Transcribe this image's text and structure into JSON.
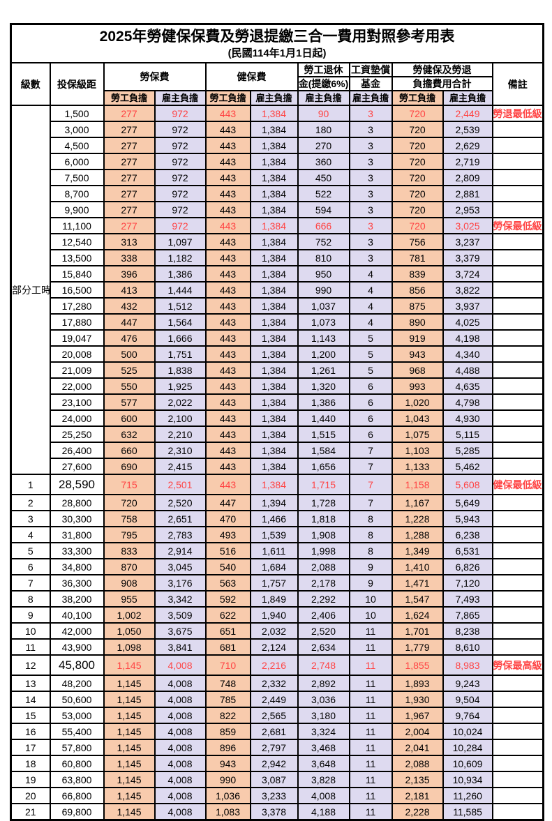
{
  "page": {
    "title": "2025年勞健保保費及勞退提繳三合一費用對照參考用表",
    "subtitle": "(民國114年1月1日起)"
  },
  "colors": {
    "employee_column_bg": "#F8CBAD",
    "employer_column_bg": "#DEDAF0",
    "highlight_text": "#FF4343",
    "border": "#000000"
  },
  "header": {
    "level": "級數",
    "bracket": "投保級距",
    "labor_group": "勞保費",
    "health_group": "健保費",
    "pension_line1": "勞工退休",
    "pension_line2": "金(提繳6%)",
    "wage_line1": "工資墊償",
    "wage_line2": "基金",
    "total_line1": "勞健保及勞退",
    "total_line2": "負擔費用合計",
    "note": "備註",
    "employee": "勞工負擔",
    "employer": "雇主負擔"
  },
  "part_time_label": "部分工時",
  "part_time_span": 23,
  "rows": [
    {
      "level": "",
      "bracket": "1,500",
      "values": [
        "277",
        "972",
        "443",
        "1,384",
        "90",
        "3",
        "720",
        "2,449"
      ],
      "note": "勞退最低級距",
      "hl": true,
      "big": false
    },
    {
      "level": "",
      "bracket": "3,000",
      "values": [
        "277",
        "972",
        "443",
        "1,384",
        "180",
        "3",
        "720",
        "2,539"
      ],
      "note": "",
      "hl": false,
      "big": false
    },
    {
      "level": "",
      "bracket": "4,500",
      "values": [
        "277",
        "972",
        "443",
        "1,384",
        "270",
        "3",
        "720",
        "2,629"
      ],
      "note": "",
      "hl": false,
      "big": false
    },
    {
      "level": "",
      "bracket": "6,000",
      "values": [
        "277",
        "972",
        "443",
        "1,384",
        "360",
        "3",
        "720",
        "2,719"
      ],
      "note": "",
      "hl": false,
      "big": false
    },
    {
      "level": "",
      "bracket": "7,500",
      "values": [
        "277",
        "972",
        "443",
        "1,384",
        "450",
        "3",
        "720",
        "2,809"
      ],
      "note": "",
      "hl": false,
      "big": false
    },
    {
      "level": "",
      "bracket": "8,700",
      "values": [
        "277",
        "972",
        "443",
        "1,384",
        "522",
        "3",
        "720",
        "2,881"
      ],
      "note": "",
      "hl": false,
      "big": false
    },
    {
      "level": "",
      "bracket": "9,900",
      "values": [
        "277",
        "972",
        "443",
        "1,384",
        "594",
        "3",
        "720",
        "2,953"
      ],
      "note": "",
      "hl": false,
      "big": false
    },
    {
      "level": "",
      "bracket": "11,100",
      "values": [
        "277",
        "972",
        "443",
        "1,384",
        "666",
        "3",
        "720",
        "3,025"
      ],
      "note": "勞保最低級距",
      "hl": true,
      "big": false
    },
    {
      "level": "",
      "bracket": "12,540",
      "values": [
        "313",
        "1,097",
        "443",
        "1,384",
        "752",
        "3",
        "756",
        "3,237"
      ],
      "note": "",
      "hl": false,
      "big": false
    },
    {
      "level": "",
      "bracket": "13,500",
      "values": [
        "338",
        "1,182",
        "443",
        "1,384",
        "810",
        "3",
        "781",
        "3,379"
      ],
      "note": "",
      "hl": false,
      "big": false
    },
    {
      "level": "",
      "bracket": "15,840",
      "values": [
        "396",
        "1,386",
        "443",
        "1,384",
        "950",
        "4",
        "839",
        "3,724"
      ],
      "note": "",
      "hl": false,
      "big": false
    },
    {
      "level": "",
      "bracket": "16,500",
      "values": [
        "413",
        "1,444",
        "443",
        "1,384",
        "990",
        "4",
        "856",
        "3,822"
      ],
      "note": "",
      "hl": false,
      "big": false
    },
    {
      "level": "",
      "bracket": "17,280",
      "values": [
        "432",
        "1,512",
        "443",
        "1,384",
        "1,037",
        "4",
        "875",
        "3,937"
      ],
      "note": "",
      "hl": false,
      "big": false
    },
    {
      "level": "",
      "bracket": "17,880",
      "values": [
        "447",
        "1,564",
        "443",
        "1,384",
        "1,073",
        "4",
        "890",
        "4,025"
      ],
      "note": "",
      "hl": false,
      "big": false
    },
    {
      "level": "",
      "bracket": "19,047",
      "values": [
        "476",
        "1,666",
        "443",
        "1,384",
        "1,143",
        "5",
        "919",
        "4,198"
      ],
      "note": "",
      "hl": false,
      "big": false
    },
    {
      "level": "",
      "bracket": "20,008",
      "values": [
        "500",
        "1,751",
        "443",
        "1,384",
        "1,200",
        "5",
        "943",
        "4,340"
      ],
      "note": "",
      "hl": false,
      "big": false
    },
    {
      "level": "",
      "bracket": "21,009",
      "values": [
        "525",
        "1,838",
        "443",
        "1,384",
        "1,261",
        "5",
        "968",
        "4,488"
      ],
      "note": "",
      "hl": false,
      "big": false
    },
    {
      "level": "",
      "bracket": "22,000",
      "values": [
        "550",
        "1,925",
        "443",
        "1,384",
        "1,320",
        "6",
        "993",
        "4,635"
      ],
      "note": "",
      "hl": false,
      "big": false
    },
    {
      "level": "",
      "bracket": "23,100",
      "values": [
        "577",
        "2,022",
        "443",
        "1,384",
        "1,386",
        "6",
        "1,020",
        "4,798"
      ],
      "note": "",
      "hl": false,
      "big": false
    },
    {
      "level": "",
      "bracket": "24,000",
      "values": [
        "600",
        "2,100",
        "443",
        "1,384",
        "1,440",
        "6",
        "1,043",
        "4,930"
      ],
      "note": "",
      "hl": false,
      "big": false
    },
    {
      "level": "",
      "bracket": "25,250",
      "values": [
        "632",
        "2,210",
        "443",
        "1,384",
        "1,515",
        "6",
        "1,075",
        "5,115"
      ],
      "note": "",
      "hl": false,
      "big": false
    },
    {
      "level": "",
      "bracket": "26,400",
      "values": [
        "660",
        "2,310",
        "443",
        "1,384",
        "1,584",
        "7",
        "1,103",
        "5,285"
      ],
      "note": "",
      "hl": false,
      "big": false
    },
    {
      "level": "",
      "bracket": "27,600",
      "values": [
        "690",
        "2,415",
        "443",
        "1,384",
        "1,656",
        "7",
        "1,133",
        "5,462"
      ],
      "note": "",
      "hl": false,
      "big": false
    },
    {
      "level": "1",
      "bracket": "28,590",
      "values": [
        "715",
        "2,501",
        "443",
        "1,384",
        "1,715",
        "7",
        "1,158",
        "5,608"
      ],
      "note": "健保最低級距",
      "hl": true,
      "big": true
    },
    {
      "level": "2",
      "bracket": "28,800",
      "values": [
        "720",
        "2,520",
        "447",
        "1,394",
        "1,728",
        "7",
        "1,167",
        "5,649"
      ],
      "note": "",
      "hl": false,
      "big": false
    },
    {
      "level": "3",
      "bracket": "30,300",
      "values": [
        "758",
        "2,651",
        "470",
        "1,466",
        "1,818",
        "8",
        "1,228",
        "5,943"
      ],
      "note": "",
      "hl": false,
      "big": false
    },
    {
      "level": "4",
      "bracket": "31,800",
      "values": [
        "795",
        "2,783",
        "493",
        "1,539",
        "1,908",
        "8",
        "1,288",
        "6,238"
      ],
      "note": "",
      "hl": false,
      "big": false
    },
    {
      "level": "5",
      "bracket": "33,300",
      "values": [
        "833",
        "2,914",
        "516",
        "1,611",
        "1,998",
        "8",
        "1,349",
        "6,531"
      ],
      "note": "",
      "hl": false,
      "big": false
    },
    {
      "level": "6",
      "bracket": "34,800",
      "values": [
        "870",
        "3,045",
        "540",
        "1,684",
        "2,088",
        "9",
        "1,410",
        "6,826"
      ],
      "note": "",
      "hl": false,
      "big": false
    },
    {
      "level": "7",
      "bracket": "36,300",
      "values": [
        "908",
        "3,176",
        "563",
        "1,757",
        "2,178",
        "9",
        "1,471",
        "7,120"
      ],
      "note": "",
      "hl": false,
      "big": false
    },
    {
      "level": "8",
      "bracket": "38,200",
      "values": [
        "955",
        "3,342",
        "592",
        "1,849",
        "2,292",
        "10",
        "1,547",
        "7,493"
      ],
      "note": "",
      "hl": false,
      "big": false
    },
    {
      "level": "9",
      "bracket": "40,100",
      "values": [
        "1,002",
        "3,509",
        "622",
        "1,940",
        "2,406",
        "10",
        "1,624",
        "7,865"
      ],
      "note": "",
      "hl": false,
      "big": false
    },
    {
      "level": "10",
      "bracket": "42,000",
      "values": [
        "1,050",
        "3,675",
        "651",
        "2,032",
        "2,520",
        "11",
        "1,701",
        "8,238"
      ],
      "note": "",
      "hl": false,
      "big": false
    },
    {
      "level": "11",
      "bracket": "43,900",
      "values": [
        "1,098",
        "3,841",
        "681",
        "2,124",
        "2,634",
        "11",
        "1,779",
        "8,610"
      ],
      "note": "",
      "hl": false,
      "big": false
    },
    {
      "level": "12",
      "bracket": "45,800",
      "values": [
        "1,145",
        "4,008",
        "710",
        "2,216",
        "2,748",
        "11",
        "1,855",
        "8,983"
      ],
      "note": "勞保最高級距",
      "hl": true,
      "big": true
    },
    {
      "level": "13",
      "bracket": "48,200",
      "values": [
        "1,145",
        "4,008",
        "748",
        "2,332",
        "2,892",
        "11",
        "1,893",
        "9,243"
      ],
      "note": "",
      "hl": false,
      "big": false
    },
    {
      "level": "14",
      "bracket": "50,600",
      "values": [
        "1,145",
        "4,008",
        "785",
        "2,449",
        "3,036",
        "11",
        "1,930",
        "9,504"
      ],
      "note": "",
      "hl": false,
      "big": false
    },
    {
      "level": "15",
      "bracket": "53,000",
      "values": [
        "1,145",
        "4,008",
        "822",
        "2,565",
        "3,180",
        "11",
        "1,967",
        "9,764"
      ],
      "note": "",
      "hl": false,
      "big": false
    },
    {
      "level": "16",
      "bracket": "55,400",
      "values": [
        "1,145",
        "4,008",
        "859",
        "2,681",
        "3,324",
        "11",
        "2,004",
        "10,024"
      ],
      "note": "",
      "hl": false,
      "big": false
    },
    {
      "level": "17",
      "bracket": "57,800",
      "values": [
        "1,145",
        "4,008",
        "896",
        "2,797",
        "3,468",
        "11",
        "2,041",
        "10,284"
      ],
      "note": "",
      "hl": false,
      "big": false
    },
    {
      "level": "18",
      "bracket": "60,800",
      "values": [
        "1,145",
        "4,008",
        "943",
        "2,942",
        "3,648",
        "11",
        "2,088",
        "10,609"
      ],
      "note": "",
      "hl": false,
      "big": false
    },
    {
      "level": "19",
      "bracket": "63,800",
      "values": [
        "1,145",
        "4,008",
        "990",
        "3,087",
        "3,828",
        "11",
        "2,135",
        "10,934"
      ],
      "note": "",
      "hl": false,
      "big": false
    },
    {
      "level": "20",
      "bracket": "66,800",
      "values": [
        "1,145",
        "4,008",
        "1,036",
        "3,233",
        "4,008",
        "11",
        "2,181",
        "11,260"
      ],
      "note": "",
      "hl": false,
      "big": false
    },
    {
      "level": "21",
      "bracket": "69,800",
      "values": [
        "1,145",
        "4,008",
        "1,083",
        "3,378",
        "4,188",
        "11",
        "2,228",
        "11,585"
      ],
      "note": "",
      "hl": false,
      "big": false
    }
  ]
}
